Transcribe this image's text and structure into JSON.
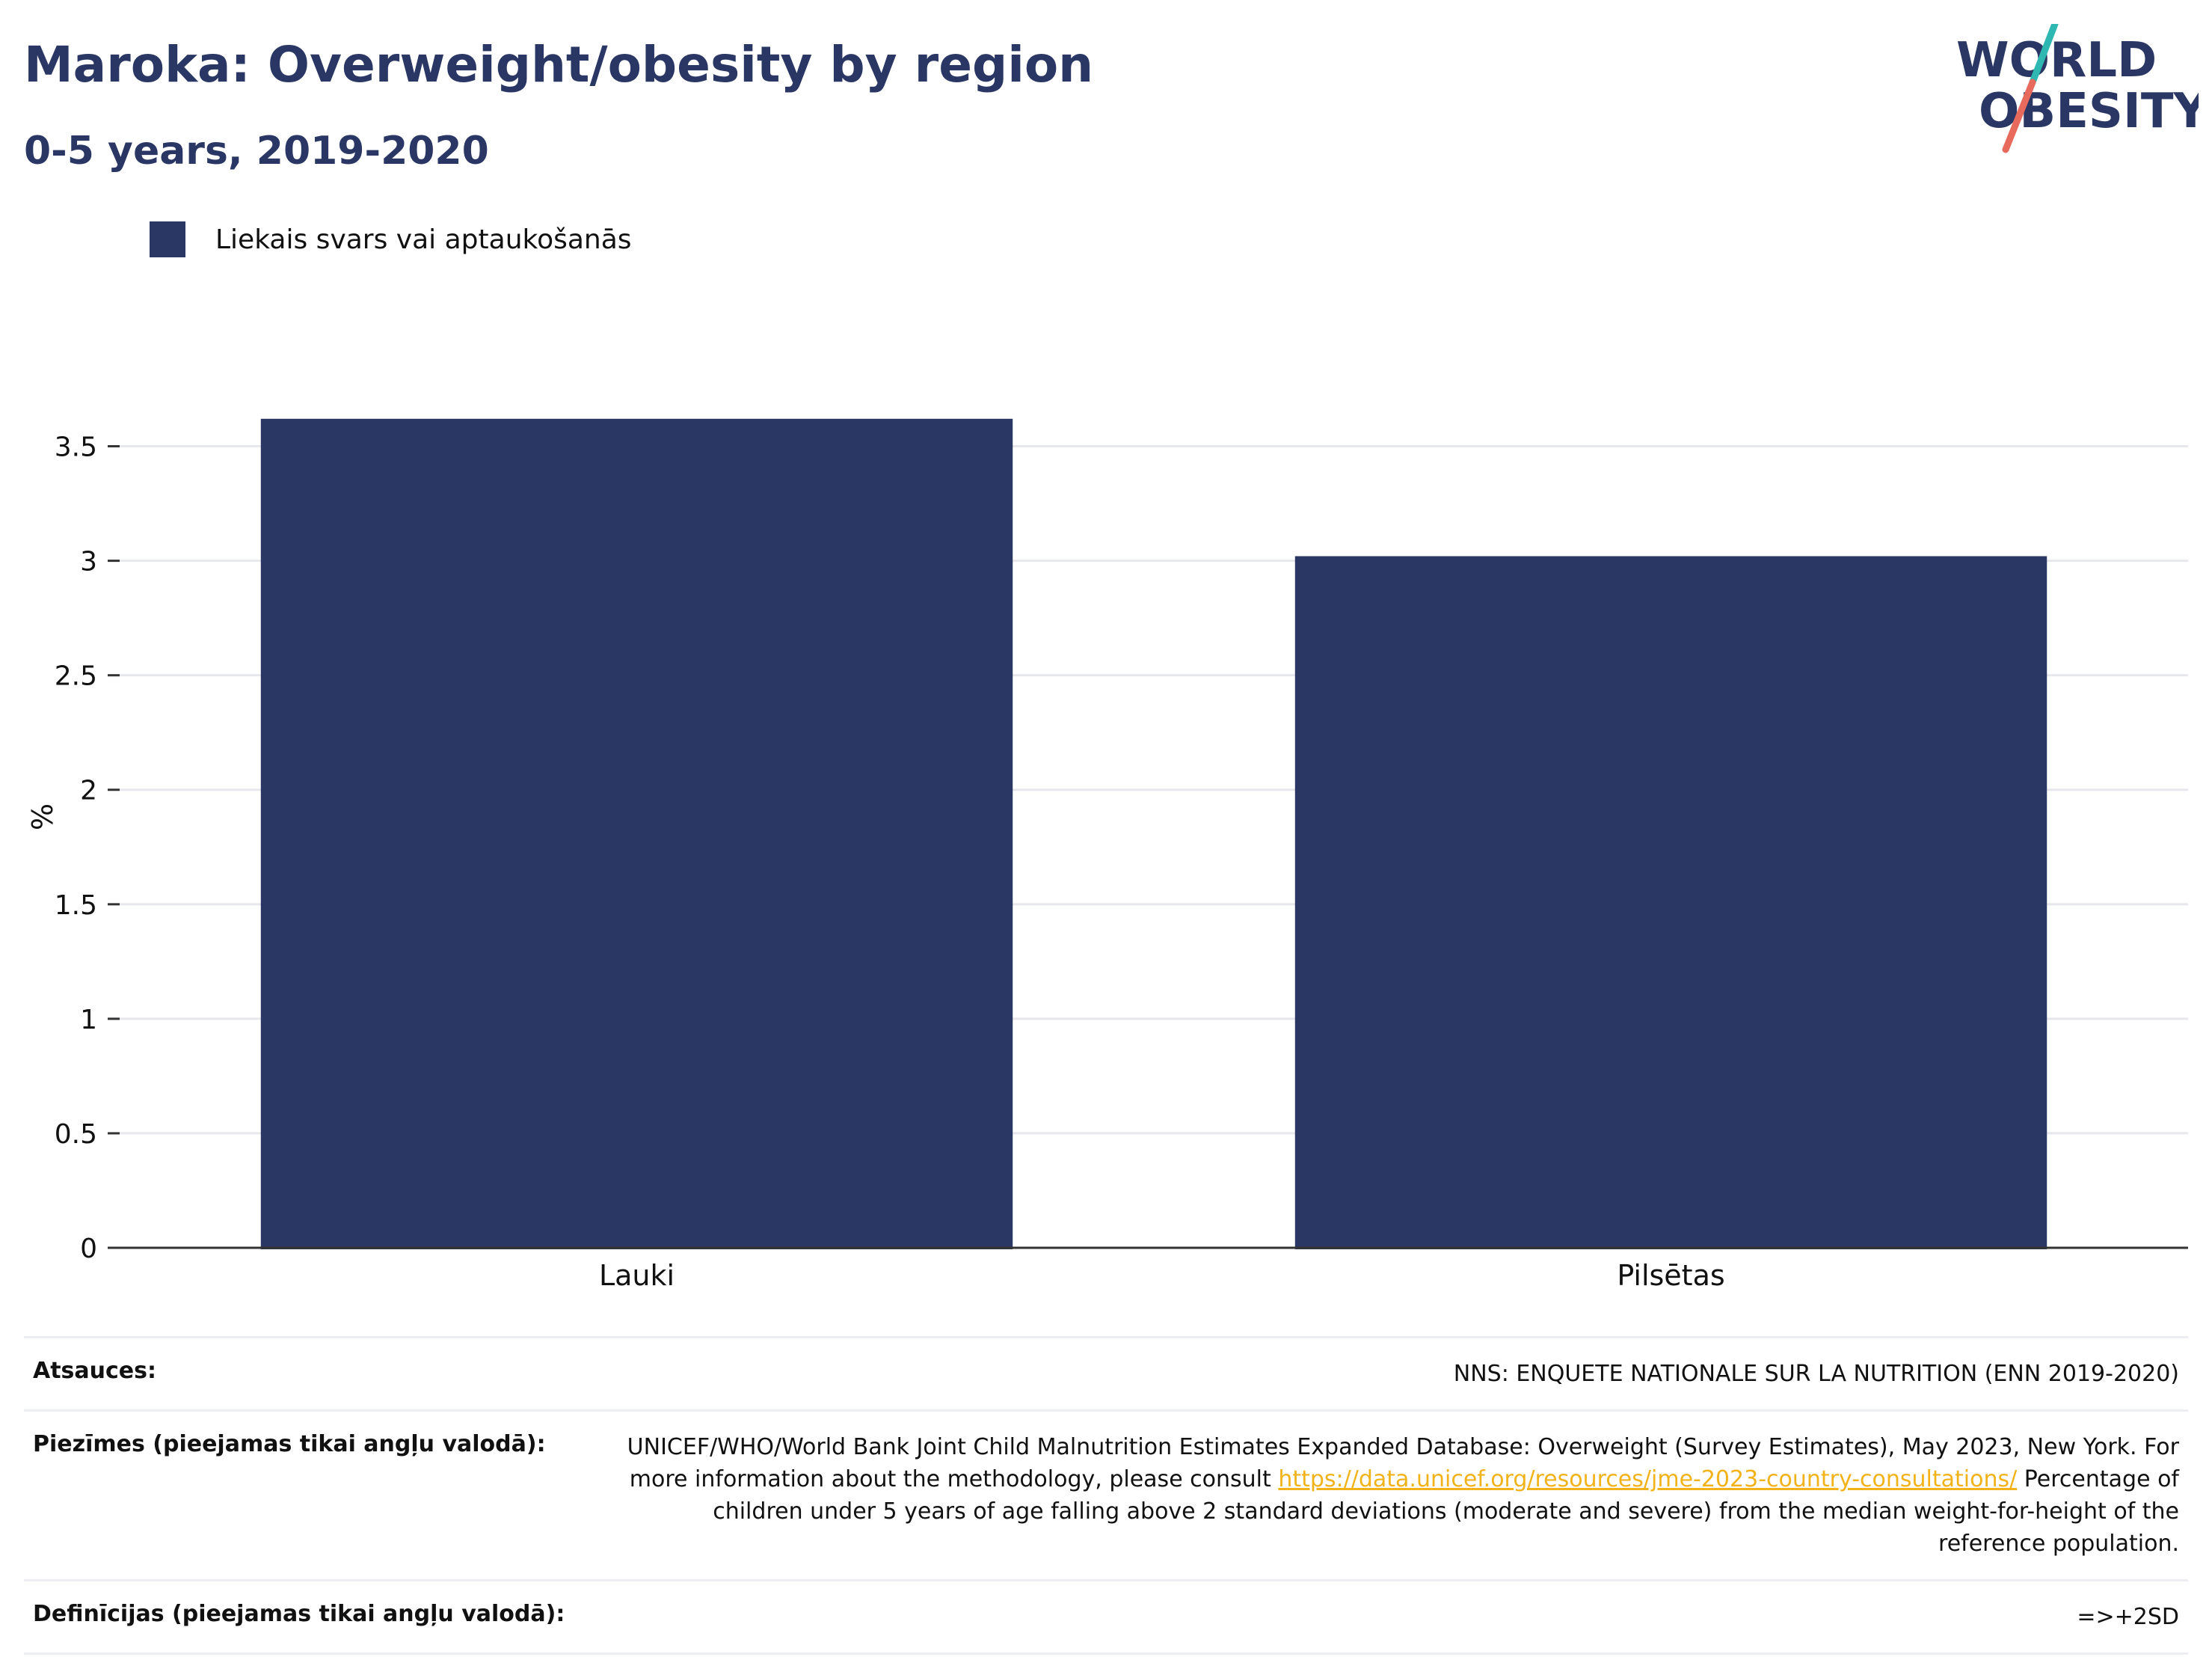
{
  "header": {
    "title": "Maroka: Overweight/obesity by region",
    "subtitle": "0-5 years, 2019-2020"
  },
  "logo": {
    "line1": "WORLD",
    "line2": "OBESITY",
    "colors": {
      "text": "#2a3764",
      "slash_top": "#2fb8b1",
      "slash_bottom": "#e86a5d"
    }
  },
  "legend": {
    "label": "Liekais svars vai aptaukošanās",
    "color": "#2a3764"
  },
  "chart_data": {
    "type": "bar",
    "categories": [
      "Lauki",
      "Pilsētas"
    ],
    "series": [
      {
        "name": "Liekais svars vai aptaukošanās",
        "values": [
          3.62,
          3.02
        ],
        "color": "#2a3764"
      }
    ],
    "title": "Maroka: Overweight/obesity by region",
    "subtitle": "0-5 years, 2019-2020",
    "xlabel": "",
    "ylabel": "%",
    "ylim": [
      0,
      3.75
    ],
    "yticks": [
      0,
      0.5,
      1,
      1.5,
      2,
      2.5,
      3,
      3.5
    ],
    "ytick_labels": [
      "0",
      "0.5",
      "1",
      "1.5",
      "2",
      "2.5",
      "3",
      "3.5"
    ],
    "grid": true,
    "legend_position": "top-left"
  },
  "footer": {
    "sources_label": "Atsauces:",
    "sources_value": "NNS: ENQUETE NATIONALE SUR LA NUTRITION (ENN 2019-2020)",
    "notes_label": "Piezīmes (pieejamas tikai angļu valodā):",
    "notes_text_1": "UNICEF/WHO/World Bank Joint Child Malnutrition Estimates Expanded Database: Overweight (Survey Estimates), May 2023, New York. For more information about the methodology, please consult ",
    "notes_link": "https://data.unicef.org/resources/jme-2023-country-consultations/",
    "notes_text_2": " Percentage of children under 5 years of age falling above 2 standard deviations (moderate and severe) from the median weight-for-height of the reference population.",
    "definitions_label": "Definīcijas (pieejamas tikai angļu valodā):",
    "definitions_value": "=>+2SD"
  }
}
